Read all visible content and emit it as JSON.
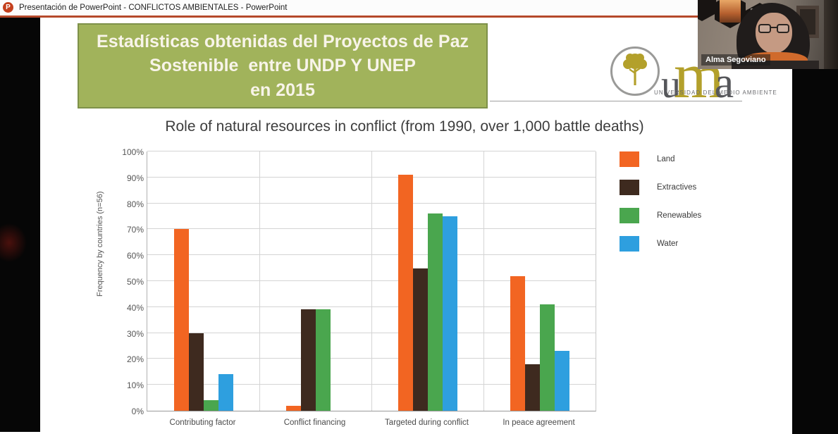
{
  "titlebar": {
    "title": "Presentación de PowerPoint - CONFLICTOS AMBIENTALES - PowerPoint",
    "app_icon_letter": "P",
    "accent_color": "#b5492b"
  },
  "slide": {
    "header_box": {
      "line1": "Estadísticas obtenidas del Proyectos de Paz",
      "line2": "Sostenible  entre UNDP Y UNEP",
      "line3": "en 2015",
      "bg_color": "#a1b35b",
      "text_color": "#f8f4e9"
    },
    "logo": {
      "letter_u": "u",
      "letter_m": "m",
      "letter_a": "a",
      "subtitle": "UNIVERSIDAD DEL MEDIO AMBIENTE",
      "gold_color": "#b3a02b",
      "gray_color": "#55565a"
    }
  },
  "video": {
    "participant_name": "Alma Segoviano"
  },
  "chart_data": {
    "type": "bar",
    "title": "Role of natural resources in conflict (from 1990, over 1,000 battle deaths)",
    "ylabel": "Frequency by countries (n=56)",
    "xlabel": "",
    "categories": [
      "Contributing factor",
      "Conflict financing",
      "Targeted during conflict",
      "In peace agreement"
    ],
    "series": [
      {
        "name": "Land",
        "color": "#f26522",
        "values": [
          70,
          2,
          91,
          52
        ]
      },
      {
        "name": "Extractives",
        "color": "#3e2a1f",
        "values": [
          30,
          39,
          55,
          18
        ]
      },
      {
        "name": "Renewables",
        "color": "#4aa64e",
        "values": [
          4,
          39,
          76,
          41
        ]
      },
      {
        "name": "Water",
        "color": "#2e9fdf",
        "values": [
          14,
          0,
          75,
          23
        ]
      }
    ],
    "ylim": [
      0,
      100
    ],
    "ytick_step": 10,
    "ytick_suffix": "%",
    "grid": true,
    "legend_position": "right"
  }
}
